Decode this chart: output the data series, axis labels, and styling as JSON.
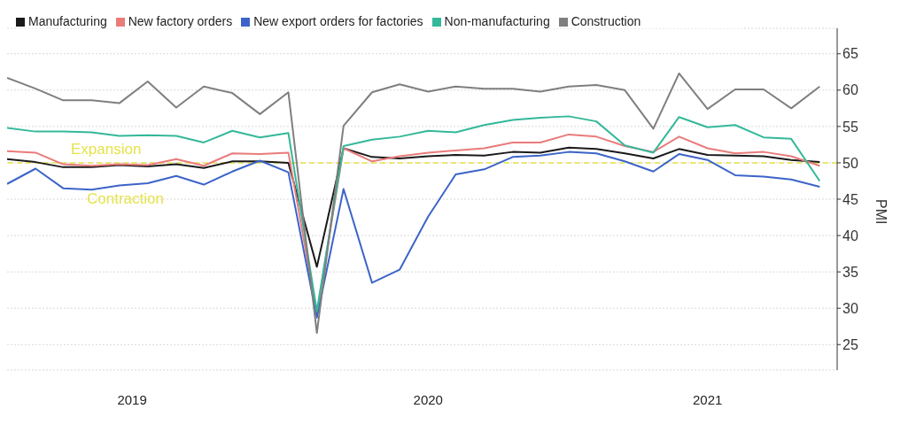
{
  "chart_data": {
    "type": "line",
    "ylabel": "PMI",
    "x": [
      "2019-03",
      "2019-04",
      "2019-05",
      "2019-06",
      "2019-07",
      "2019-08",
      "2019-09",
      "2019-10",
      "2019-11",
      "2019-12",
      "2020-01",
      "2020-02",
      "2020-03",
      "2020-04",
      "2020-05",
      "2020-06",
      "2020-07",
      "2020-08",
      "2020-09",
      "2020-10",
      "2020-11",
      "2020-12",
      "2021-01",
      "2021-02",
      "2021-03",
      "2021-04",
      "2021-05",
      "2021-06",
      "2021-07",
      "2021-08"
    ],
    "series": [
      {
        "name": "Manufacturing",
        "color": "#1a1a1a",
        "values": [
          50.5,
          50.1,
          49.4,
          49.4,
          49.7,
          49.5,
          49.8,
          49.3,
          50.2,
          50.2,
          50.0,
          35.7,
          52.0,
          50.8,
          50.6,
          50.9,
          51.1,
          51.0,
          51.5,
          51.4,
          52.1,
          51.9,
          51.3,
          50.6,
          51.9,
          51.1,
          51.0,
          50.9,
          50.4,
          50.1
        ]
      },
      {
        "name": "New factory orders",
        "color": "#e97b7b",
        "values": [
          51.6,
          51.4,
          49.8,
          49.6,
          49.8,
          49.7,
          50.5,
          49.6,
          51.3,
          51.2,
          51.4,
          29.3,
          52.0,
          50.2,
          50.9,
          51.4,
          51.7,
          52.0,
          52.8,
          52.8,
          53.9,
          53.6,
          52.3,
          51.5,
          53.6,
          52.0,
          51.3,
          51.5,
          50.9,
          49.6
        ]
      },
      {
        "name": "New export orders for factories",
        "color": "#3c64c8",
        "values": [
          47.1,
          49.2,
          46.5,
          46.3,
          46.9,
          47.2,
          48.2,
          47.0,
          48.8,
          50.3,
          48.7,
          28.7,
          46.4,
          33.5,
          35.3,
          42.6,
          48.4,
          49.1,
          50.8,
          51.0,
          51.5,
          51.3,
          50.2,
          48.8,
          51.2,
          50.4,
          48.3,
          48.1,
          47.7,
          46.7
        ]
      },
      {
        "name": "Non-manufacturing",
        "color": "#34b89a",
        "values": [
          54.8,
          54.3,
          54.3,
          54.2,
          53.7,
          53.8,
          53.7,
          52.8,
          54.4,
          53.5,
          54.1,
          29.6,
          52.3,
          53.2,
          53.6,
          54.4,
          54.2,
          55.2,
          55.9,
          56.2,
          56.4,
          55.7,
          52.4,
          51.4,
          56.3,
          54.9,
          55.2,
          53.5,
          53.3,
          47.5
        ]
      },
      {
        "name": "Construction",
        "color": "#7f7f7f",
        "values": [
          61.7,
          60.2,
          58.6,
          58.6,
          58.2,
          61.2,
          57.6,
          60.5,
          59.6,
          56.7,
          59.7,
          26.6,
          55.1,
          59.7,
          60.8,
          59.8,
          60.5,
          60.2,
          60.2,
          59.8,
          60.5,
          60.7,
          60.0,
          54.7,
          62.3,
          57.4,
          60.1,
          60.1,
          57.5,
          60.5
        ]
      }
    ],
    "xlim": [
      "2019-03",
      "2021-08-20"
    ],
    "xticks": [
      {
        "value": "2019-07-15",
        "label": "2019"
      },
      {
        "value": "2020-06-01",
        "label": "2020"
      },
      {
        "value": "2021-04-01",
        "label": "2021"
      }
    ],
    "ylim": [
      21.5,
      68.5
    ],
    "yticks": [
      25,
      30,
      35,
      40,
      45,
      50,
      55,
      60,
      65
    ],
    "ref_lines": [
      {
        "axis": "y",
        "value": 50,
        "color": "#e6e24a",
        "line_style": "dashed"
      }
    ],
    "annotations": [
      "Expansion",
      "Contraction"
    ],
    "grid": "y",
    "legend": "top left",
    "marker": "none",
    "line_style": "solid"
  }
}
